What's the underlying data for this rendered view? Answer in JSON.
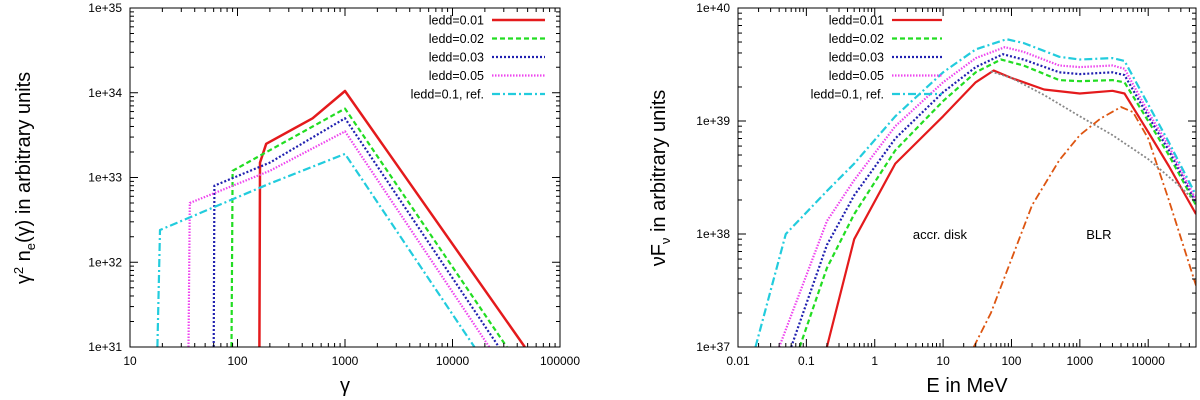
{
  "chart_data": [
    {
      "type": "line",
      "xscale": "log",
      "yscale": "log",
      "xlim": [
        10,
        100000
      ],
      "ylim": [
        1e+31,
        1e+35
      ],
      "xlabel": "γ",
      "ylabel_parts": [
        "γ",
        "2",
        " n",
        "e",
        "(γ) in arbitrary units"
      ],
      "xticks": [
        {
          "v": 10,
          "label": "10"
        },
        {
          "v": 100,
          "label": "100"
        },
        {
          "v": 1000,
          "label": "1000"
        },
        {
          "v": 10000,
          "label": "10000"
        },
        {
          "v": 100000,
          "label": "100000"
        }
      ],
      "yticks": [
        {
          "v": 1e+31,
          "label": "1e+31"
        },
        {
          "v": 1e+32,
          "label": "1e+32"
        },
        {
          "v": 1e+33,
          "label": "1e+33"
        },
        {
          "v": 1e+34,
          "label": "1e+34"
        },
        {
          "v": 1e+35,
          "label": "1e+35"
        }
      ],
      "legend_position": "top-right",
      "series": [
        {
          "name": "ledd=0.01",
          "color": "#e41a1c",
          "dash": "",
          "width": 2.5,
          "points": [
            [
              160,
              1e+31
            ],
            [
              162,
              1.5e+33
            ],
            [
              185,
              2.5e+33
            ],
            [
              500,
              5e+33
            ],
            [
              1000,
              1.05e+34
            ],
            [
              47000,
              1e+31
            ]
          ]
        },
        {
          "name": "ledd=0.02",
          "color": "#22dd22",
          "dash": "5,3",
          "width": 2.2,
          "points": [
            [
              88,
              1e+31
            ],
            [
              90,
              1.2e+33
            ],
            [
              200,
              2.1e+33
            ],
            [
              1000,
              6.5e+33
            ],
            [
              32000,
              1e+31
            ]
          ]
        },
        {
          "name": "ledd=0.03",
          "color": "#2020b0",
          "dash": "2,2",
          "width": 2.2,
          "points": [
            [
              60,
              1e+31
            ],
            [
              61,
              8e+32
            ],
            [
              200,
              1.5e+33
            ],
            [
              1000,
              5e+33
            ],
            [
              27000,
              1e+31
            ]
          ]
        },
        {
          "name": "ledd=0.05",
          "color": "#ee44ee",
          "dash": "1.5,1.5",
          "width": 2.2,
          "points": [
            [
              35,
              1e+31
            ],
            [
              36,
              5e+32
            ],
            [
              200,
              1.2e+33
            ],
            [
              1000,
              3.5e+33
            ],
            [
              22000,
              1e+31
            ]
          ]
        },
        {
          "name": "ledd=0.1, ref.",
          "color": "#22ccdd",
          "dash": "8,3,2,3",
          "width": 2.2,
          "points": [
            [
              18,
              1e+31
            ],
            [
              19,
              2.4e+32
            ],
            [
              200,
              8.5e+32
            ],
            [
              1000,
              1.9e+33
            ],
            [
              16000,
              1e+31
            ]
          ]
        }
      ]
    },
    {
      "type": "line",
      "xscale": "log",
      "yscale": "log",
      "xlim": [
        0.01,
        50000
      ],
      "ylim": [
        1e+37,
        1e+40
      ],
      "xlabel": "E in MeV",
      "ylabel_parts": [
        "νF",
        "ν",
        " in arbitrary units"
      ],
      "xticks": [
        {
          "v": 0.01,
          "label": "0.01"
        },
        {
          "v": 0.1,
          "label": "0.1"
        },
        {
          "v": 1,
          "label": "1"
        },
        {
          "v": 10,
          "label": "10"
        },
        {
          "v": 100,
          "label": "100"
        },
        {
          "v": 1000,
          "label": "1000"
        },
        {
          "v": 10000,
          "label": "10000"
        }
      ],
      "yticks": [
        {
          "v": 1e+37,
          "label": "1e+37"
        },
        {
          "v": 1e+38,
          "label": "1e+38"
        },
        {
          "v": 1e+39,
          "label": "1e+39"
        },
        {
          "v": 1e+40,
          "label": "1e+40"
        }
      ],
      "legend_position": "top-left",
      "annotations": [
        {
          "text": "accr. disk",
          "x": 9,
          "y": 9e+37
        },
        {
          "text": "BLR",
          "x": 1900,
          "y": 9e+37
        }
      ],
      "series": [
        {
          "name": "ledd=0.01",
          "color": "#e41a1c",
          "dash": "",
          "width": 2.2,
          "points": [
            [
              0.2,
              1e+37
            ],
            [
              0.5,
              9e+37
            ],
            [
              2,
              4.2e+38
            ],
            [
              10,
              1.1e+39
            ],
            [
              30,
              2.2e+39
            ],
            [
              55,
              2.8e+39
            ],
            [
              100,
              2.4e+39
            ],
            [
              300,
              1.9e+39
            ],
            [
              1000,
              1.75e+39
            ],
            [
              3000,
              1.85e+39
            ],
            [
              4500,
              1.75e+39
            ],
            [
              10000,
              8e+38
            ],
            [
              20000,
              4e+38
            ],
            [
              50000,
              1.5e+38
            ]
          ]
        },
        {
          "name": "ledd=0.02",
          "color": "#22dd22",
          "dash": "5,3",
          "width": 2.2,
          "points": [
            [
              0.08,
              1e+37
            ],
            [
              0.2,
              5e+37
            ],
            [
              0.5,
              1.5e+38
            ],
            [
              2,
              5.5e+38
            ],
            [
              10,
              1.5e+39
            ],
            [
              30,
              2.7e+39
            ],
            [
              70,
              3.5e+39
            ],
            [
              150,
              3.1e+39
            ],
            [
              500,
              2.3e+39
            ],
            [
              1000,
              2.25e+39
            ],
            [
              3000,
              2.3e+39
            ],
            [
              4500,
              2.2e+39
            ],
            [
              10000,
              1e+39
            ],
            [
              20000,
              5e+38
            ],
            [
              50000,
              1.8e+38
            ]
          ]
        },
        {
          "name": "ledd=0.03",
          "color": "#2020b0",
          "dash": "2,2",
          "width": 2.2,
          "points": [
            [
              0.06,
              1e+37
            ],
            [
              0.2,
              8e+37
            ],
            [
              0.5,
              2.2e+38
            ],
            [
              2,
              7e+38
            ],
            [
              10,
              1.8e+39
            ],
            [
              30,
              3e+39
            ],
            [
              75,
              3.9e+39
            ],
            [
              150,
              3.5e+39
            ],
            [
              500,
              2.7e+39
            ],
            [
              1000,
              2.6e+39
            ],
            [
              3000,
              2.7e+39
            ],
            [
              4500,
              2.55e+39
            ],
            [
              10000,
              1.1e+39
            ],
            [
              20000,
              5.5e+38
            ],
            [
              50000,
              1.9e+38
            ]
          ]
        },
        {
          "name": "ledd=0.05",
          "color": "#ee44ee",
          "dash": "1.5,1.5",
          "width": 2.2,
          "points": [
            [
              0.04,
              1e+37
            ],
            [
              0.2,
              1.3e+38
            ],
            [
              0.5,
              3e+38
            ],
            [
              2,
              9e+38
            ],
            [
              10,
              2.2e+39
            ],
            [
              30,
              3.6e+39
            ],
            [
              80,
              4.5e+39
            ],
            [
              150,
              4.1e+39
            ],
            [
              500,
              3.1e+39
            ],
            [
              1000,
              3e+39
            ],
            [
              3000,
              3.1e+39
            ],
            [
              4500,
              2.9e+39
            ],
            [
              10000,
              1.2e+39
            ],
            [
              20000,
              6e+38
            ],
            [
              50000,
              2e+38
            ]
          ]
        },
        {
          "name": "ledd=0.1, ref.",
          "color": "#22ccdd",
          "dash": "8,3,2,3",
          "width": 2.2,
          "points": [
            [
              0.018,
              1e+37
            ],
            [
              0.05,
              1e+38
            ],
            [
              0.2,
              2.4e+38
            ],
            [
              0.5,
              4.2e+38
            ],
            [
              2,
              1.1e+39
            ],
            [
              10,
              2.7e+39
            ],
            [
              30,
              4.3e+39
            ],
            [
              85,
              5.3e+39
            ],
            [
              150,
              4.9e+39
            ],
            [
              500,
              3.7e+39
            ],
            [
              1000,
              3.5e+39
            ],
            [
              3000,
              3.6e+39
            ],
            [
              4500,
              3.4e+39
            ],
            [
              10000,
              1.4e+39
            ],
            [
              20000,
              6.5e+38
            ],
            [
              50000,
              2.2e+38
            ]
          ]
        },
        {
          "name": "",
          "color": "#888888",
          "dash": "2,2",
          "width": 1.8,
          "points": [
            [
              50,
              2.75e+39
            ],
            [
              100,
              2.4e+39
            ],
            [
              300,
              1.7e+39
            ],
            [
              1000,
              1.1e+39
            ],
            [
              3000,
              7.5e+38
            ],
            [
              10000,
              4.6e+38
            ],
            [
              30000,
              2.6e+38
            ],
            [
              50000,
              1.9e+38
            ]
          ]
        },
        {
          "name": "",
          "color": "#dd5511",
          "dash": "8,3,2,3",
          "width": 1.8,
          "points": [
            [
              28,
              1e+37
            ],
            [
              50,
              2e+37
            ],
            [
              100,
              6e+37
            ],
            [
              200,
              1.8e+38
            ],
            [
              500,
              4.5e+38
            ],
            [
              1000,
              7.5e+38
            ],
            [
              2000,
              1.05e+39
            ],
            [
              4000,
              1.33e+39
            ],
            [
              6000,
              1.2e+39
            ],
            [
              10000,
              7e+38
            ],
            [
              20000,
              2e+38
            ],
            [
              50000,
              3.5e+37
            ]
          ]
        }
      ]
    }
  ]
}
